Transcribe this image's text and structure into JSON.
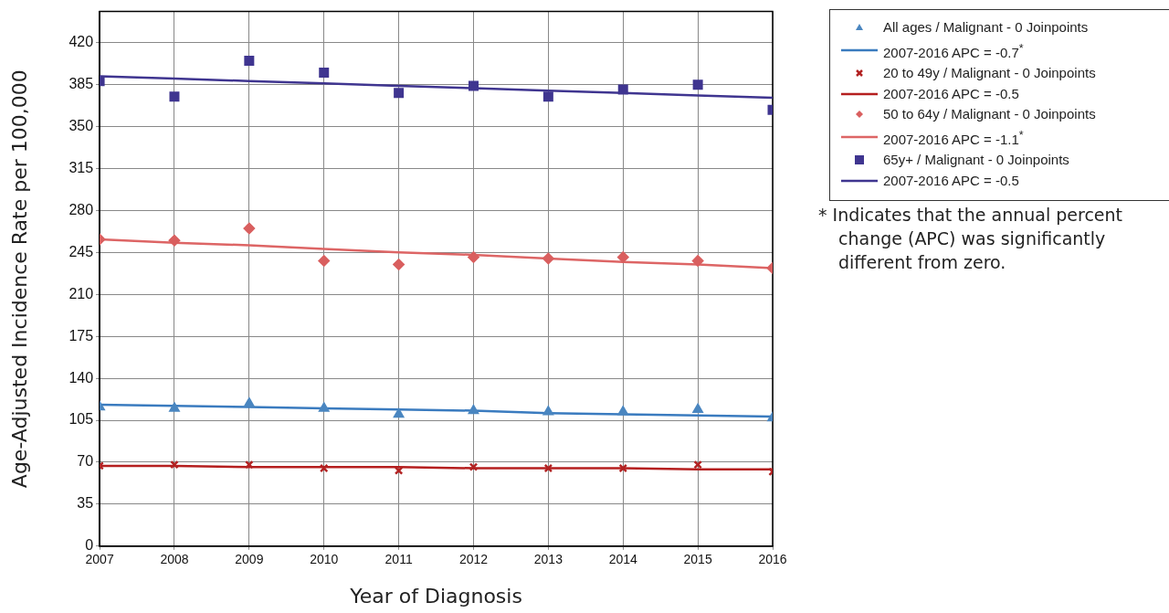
{
  "chart_data": {
    "type": "scatter",
    "xlabel": "Year of Diagnosis",
    "ylabel": "Age-Adjusted Incidence Rate per 100,000",
    "x": [
      2007,
      2008,
      2009,
      2010,
      2011,
      2012,
      2013,
      2014,
      2015,
      2016
    ],
    "xlim": [
      2007,
      2016
    ],
    "xticks": [
      2007,
      2008,
      2009,
      2010,
      2011,
      2012,
      2013,
      2014,
      2015,
      2016
    ],
    "ylim": [
      0,
      446
    ],
    "yticks": [
      0,
      35,
      70,
      105,
      140,
      175,
      210,
      245,
      280,
      315,
      350,
      385,
      420
    ],
    "grid": true,
    "legend": "right",
    "series": [
      {
        "type": "scatter",
        "marker": "triangle",
        "name": "All ages / Malignant - 0 Joinpoints",
        "color": "#4a86c0",
        "values": [
          116,
          115,
          119,
          115,
          110,
          113,
          112,
          112,
          114,
          107
        ]
      },
      {
        "type": "line",
        "marker": "none",
        "name": "2007-2016 APC  = -0.7$^{*}$",
        "color": "#3a7bbf",
        "values": [
          118,
          117,
          116,
          115,
          114,
          113,
          111,
          110,
          109,
          108
        ]
      },
      {
        "type": "scatter",
        "marker": "cross",
        "name": "20 to 49y / Malignant - 0 Joinpoints",
        "color": "#b22222",
        "values": [
          67,
          68,
          68,
          65,
          63,
          66,
          65,
          65,
          68,
          62
        ]
      },
      {
        "type": "line",
        "marker": "none",
        "name": "2007-2016 APC  = -0.5",
        "color": "#b51f1f",
        "values": [
          67,
          67,
          66,
          66,
          66,
          65,
          65,
          65,
          64,
          64
        ]
      },
      {
        "type": "scatter",
        "marker": "diamond",
        "name": "50 to 64y / Malignant - 0 Joinpoints",
        "color": "#d95f5f",
        "values": [
          256,
          255,
          265,
          238,
          235,
          241,
          240,
          241,
          238,
          232
        ]
      },
      {
        "type": "line",
        "marker": "none",
        "name": "2007-2016 APC  = -1.1$^{*}$",
        "color": "#dd6565",
        "values": [
          256,
          253,
          251,
          248,
          245,
          243,
          240,
          237,
          235,
          232
        ]
      },
      {
        "type": "scatter",
        "marker": "square",
        "name": "65y+ / Malignant - 0 Joinpoints",
        "color": "#3f3590",
        "values": [
          388,
          375,
          405,
          395,
          378,
          384,
          375,
          381,
          385,
          364
        ]
      },
      {
        "type": "line",
        "marker": "none",
        "name": "2007-2016 APC  = -0.5",
        "color": "#3f3590",
        "values": [
          392,
          390,
          388,
          386,
          384,
          382,
          380,
          378,
          376,
          374
        ]
      }
    ],
    "annotations": [
      "* Indicates that the annual percent change (APC) was significantly different from zero."
    ]
  }
}
